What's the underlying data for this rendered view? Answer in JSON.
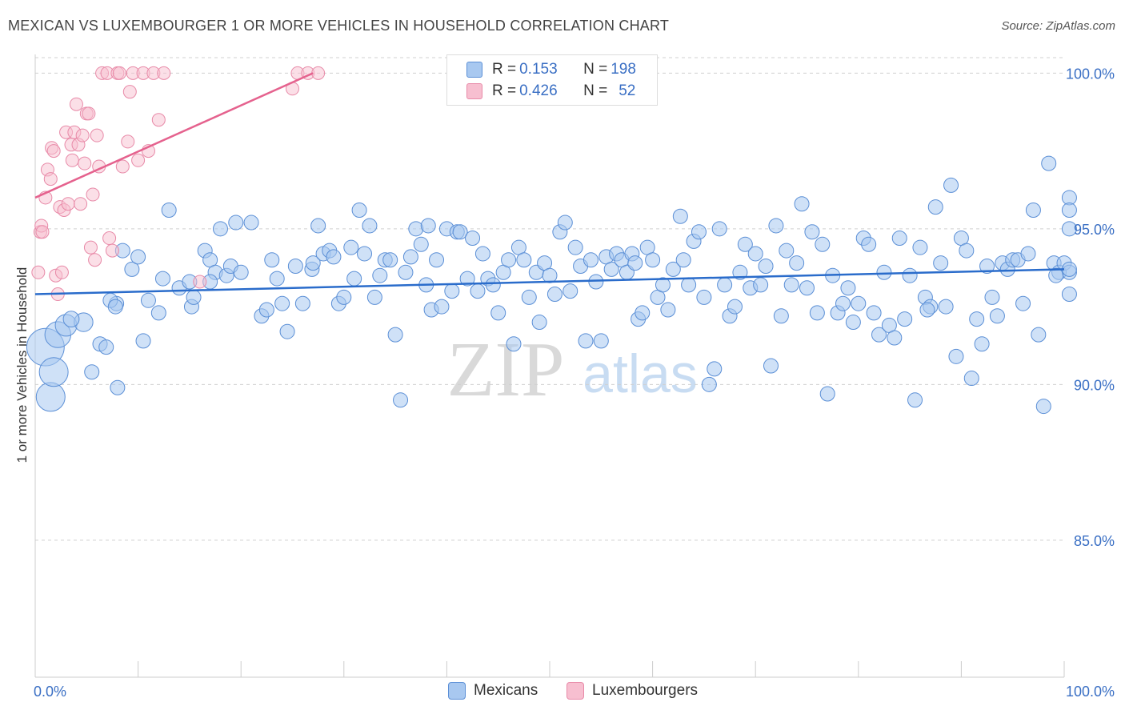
{
  "title": "MEXICAN VS LUXEMBOURGER 1 OR MORE VEHICLES IN HOUSEHOLD CORRELATION CHART",
  "source": "Source: ZipAtlas.com",
  "watermark": {
    "zip": "ZIP",
    "atlas": "atlas"
  },
  "colors": {
    "blue_fill": "#a8c8f0",
    "blue_stroke": "#5b8fd6",
    "blue_line": "#2a6ccb",
    "pink_fill": "#f7bfd0",
    "pink_stroke": "#e88aa8",
    "pink_line": "#e5628e",
    "tick_label": "#3a6fc4",
    "grid": "#d0d0d0"
  },
  "legend": {
    "rows": [
      {
        "r_label": "R = ",
        "r_value": "0.153",
        "n_label": "N = ",
        "n_value": "198"
      },
      {
        "r_label": "R = ",
        "r_value": "0.426",
        "n_label": "N = ",
        "n_value": "52"
      }
    ]
  },
  "bottom_legend": [
    "Mexicans",
    "Luxembourgers"
  ],
  "chart_data": {
    "type": "scatter",
    "title": "MEXICAN VS LUXEMBOURGER 1 OR MORE VEHICLES IN HOUSEHOLD CORRELATION CHART",
    "xlabel": "",
    "ylabel": "1 or more Vehicles in Household",
    "xlim": [
      0,
      100
    ],
    "ylim": [
      80.6,
      100.6
    ],
    "x_tick_labels": [
      "0.0%",
      "100.0%"
    ],
    "y_ticks": [
      85,
      90,
      95,
      100
    ],
    "y_tick_labels": [
      "85.0%",
      "90.0%",
      "95.0%",
      "100.0%"
    ],
    "grid": "horizontal dashed",
    "legend_placement": "top-center",
    "series": [
      {
        "name": "Mexicans",
        "color": "#a8c8f0",
        "r": 0.153,
        "n": 198,
        "trend": [
          [
            0,
            92.9
          ],
          [
            100,
            93.7
          ]
        ],
        "points": [
          [
            1,
            91.2,
            2.6
          ],
          [
            1.5,
            89.6,
            2
          ],
          [
            1.8,
            90.4,
            2
          ],
          [
            2.2,
            91.6,
            1.8
          ],
          [
            3,
            91.9,
            1.5
          ],
          [
            4.7,
            92.0,
            1.3
          ],
          [
            3.5,
            92.1,
            1.1
          ],
          [
            5.5,
            90.4,
            1
          ],
          [
            6.3,
            91.3,
            1
          ],
          [
            7.9,
            92.6,
            1
          ],
          [
            7.3,
            92.7,
            1
          ],
          [
            6.9,
            91.2,
            1
          ],
          [
            7.8,
            92.5,
            1
          ],
          [
            8,
            89.9,
            1
          ],
          [
            8.5,
            94.3,
            1
          ],
          [
            9.4,
            93.7,
            1
          ],
          [
            10,
            94.1,
            1
          ],
          [
            10.5,
            91.4,
            1
          ],
          [
            11,
            92.7,
            1
          ],
          [
            12,
            92.3,
            1
          ],
          [
            12.4,
            93.4,
            1
          ],
          [
            13,
            95.6,
            1
          ],
          [
            14,
            93.1,
            1
          ],
          [
            15.2,
            92.5,
            1
          ],
          [
            15,
            93.3,
            1
          ],
          [
            15.4,
            92.8,
            1
          ],
          [
            16.5,
            94.3,
            1
          ],
          [
            17,
            94.0,
            1
          ],
          [
            17.5,
            93.6,
            1
          ],
          [
            18,
            95.0,
            1
          ],
          [
            18.6,
            93.5,
            1
          ],
          [
            19,
            93.8,
            1
          ],
          [
            20,
            93.6,
            1
          ],
          [
            21,
            95.2,
            1
          ],
          [
            22,
            92.2,
            1
          ],
          [
            22.5,
            92.4,
            1
          ],
          [
            23,
            94.0,
            1
          ],
          [
            23.5,
            93.4,
            1
          ],
          [
            24,
            92.6,
            1
          ],
          [
            24.5,
            91.7,
            1
          ],
          [
            25.3,
            93.8,
            1
          ],
          [
            26,
            92.6,
            1
          ],
          [
            26.9,
            93.7,
            1
          ],
          [
            27,
            93.9,
            1
          ],
          [
            27.5,
            95.1,
            1
          ],
          [
            28,
            94.2,
            1
          ],
          [
            28.6,
            94.3,
            1
          ],
          [
            29,
            94.1,
            1
          ],
          [
            29.5,
            92.6,
            1
          ],
          [
            30,
            92.8,
            1
          ],
          [
            30.7,
            94.4,
            1
          ],
          [
            31,
            93.4,
            1
          ],
          [
            31.5,
            95.6,
            1
          ],
          [
            32,
            94.2,
            1
          ],
          [
            32.5,
            95.1,
            1
          ],
          [
            33,
            92.8,
            1
          ],
          [
            33.5,
            93.5,
            1
          ],
          [
            34,
            94.0,
            1
          ],
          [
            34.5,
            94.0,
            1
          ],
          [
            35,
            91.6,
            1
          ],
          [
            35.5,
            89.5,
            1
          ],
          [
            36,
            93.6,
            1
          ],
          [
            37,
            95.0,
            1
          ],
          [
            37.5,
            94.5,
            1
          ],
          [
            38,
            93.2,
            1
          ],
          [
            38.5,
            92.4,
            1
          ],
          [
            39,
            94.0,
            1
          ],
          [
            39.5,
            92.5,
            1
          ],
          [
            40,
            95.0,
            1
          ],
          [
            40.5,
            93.0,
            1
          ],
          [
            41,
            94.9,
            1
          ],
          [
            41.3,
            94.9,
            1
          ],
          [
            42,
            93.4,
            1
          ],
          [
            42.5,
            94.7,
            1
          ],
          [
            43,
            93.0,
            1
          ],
          [
            43.5,
            94.2,
            1
          ],
          [
            44,
            93.4,
            1
          ],
          [
            44.5,
            93.2,
            1
          ],
          [
            45,
            92.3,
            1
          ],
          [
            45.5,
            93.6,
            1
          ],
          [
            46,
            94.0,
            1
          ],
          [
            46.5,
            91.3,
            1
          ],
          [
            47,
            94.4,
            1
          ],
          [
            47.5,
            94.0,
            1
          ],
          [
            48,
            92.8,
            1
          ],
          [
            48.7,
            93.6,
            1
          ],
          [
            49,
            92.0,
            1
          ],
          [
            49.5,
            93.9,
            1
          ],
          [
            50,
            93.5,
            1
          ],
          [
            50.5,
            92.9,
            1
          ],
          [
            51,
            94.9,
            1
          ],
          [
            51.5,
            95.2,
            1
          ],
          [
            52,
            93.0,
            1
          ],
          [
            52.5,
            94.4,
            1
          ],
          [
            53,
            93.8,
            1
          ],
          [
            53.5,
            91.4,
            1
          ],
          [
            54,
            94.0,
            1
          ],
          [
            54.5,
            93.3,
            1
          ],
          [
            55,
            91.4,
            1
          ],
          [
            55.5,
            94.1,
            1
          ],
          [
            56,
            93.7,
            1
          ],
          [
            56.5,
            94.2,
            1
          ],
          [
            57,
            94.0,
            1
          ],
          [
            57.5,
            93.6,
            1
          ],
          [
            58,
            94.2,
            1
          ],
          [
            58.6,
            92.1,
            1
          ],
          [
            59,
            92.3,
            1
          ],
          [
            59.5,
            94.4,
            1
          ],
          [
            60,
            94.0,
            1
          ],
          [
            60.5,
            92.8,
            1
          ],
          [
            61,
            93.2,
            1
          ],
          [
            61.5,
            92.4,
            1
          ],
          [
            62,
            93.7,
            1
          ],
          [
            62.7,
            95.4,
            1
          ],
          [
            63,
            94.0,
            1
          ],
          [
            63.5,
            93.2,
            1
          ],
          [
            64,
            94.6,
            1
          ],
          [
            64.5,
            94.9,
            1
          ],
          [
            65,
            92.8,
            1
          ],
          [
            65.5,
            90.0,
            1
          ],
          [
            66,
            90.5,
            1
          ],
          [
            66.5,
            95.0,
            1
          ],
          [
            67,
            93.2,
            1
          ],
          [
            67.5,
            92.2,
            1
          ],
          [
            68,
            92.5,
            1
          ],
          [
            68.5,
            93.6,
            1
          ],
          [
            69,
            94.5,
            1
          ],
          [
            69.5,
            93.1,
            1
          ],
          [
            70,
            94.2,
            1
          ],
          [
            70.5,
            93.2,
            1
          ],
          [
            71,
            93.8,
            1
          ],
          [
            71.5,
            90.6,
            1
          ],
          [
            72,
            95.1,
            1
          ],
          [
            72.5,
            92.2,
            1
          ],
          [
            73,
            94.3,
            1
          ],
          [
            73.5,
            93.2,
            1
          ],
          [
            74,
            93.9,
            1
          ],
          [
            74.5,
            95.8,
            1
          ],
          [
            75,
            93.1,
            1
          ],
          [
            75.5,
            94.9,
            1
          ],
          [
            76,
            92.3,
            1
          ],
          [
            76.5,
            94.5,
            1
          ],
          [
            77,
            89.7,
            1
          ],
          [
            77.5,
            93.5,
            1
          ],
          [
            78,
            92.3,
            1
          ],
          [
            78.5,
            92.6,
            1
          ],
          [
            79,
            93.1,
            1
          ],
          [
            79.5,
            92.0,
            1
          ],
          [
            80,
            92.6,
            1
          ],
          [
            80.5,
            94.7,
            1
          ],
          [
            81,
            94.5,
            1
          ],
          [
            81.5,
            92.3,
            1
          ],
          [
            82,
            91.6,
            1
          ],
          [
            82.5,
            93.6,
            1
          ],
          [
            83,
            91.9,
            1
          ],
          [
            83.5,
            91.5,
            1
          ],
          [
            84,
            94.7,
            1
          ],
          [
            84.5,
            92.1,
            1
          ],
          [
            85,
            93.5,
            1
          ],
          [
            85.5,
            89.5,
            1
          ],
          [
            86,
            94.4,
            1
          ],
          [
            86.5,
            92.8,
            1
          ],
          [
            87,
            92.5,
            1
          ],
          [
            87.5,
            95.7,
            1
          ],
          [
            88,
            93.9,
            1
          ],
          [
            88.5,
            92.5,
            1
          ],
          [
            89,
            96.4,
            1
          ],
          [
            89.5,
            90.9,
            1
          ],
          [
            90,
            94.7,
            1
          ],
          [
            90.5,
            94.3,
            1
          ],
          [
            91,
            90.2,
            1
          ],
          [
            91.5,
            92.1,
            1
          ],
          [
            92,
            91.3,
            1
          ],
          [
            92.5,
            93.8,
            1
          ],
          [
            93,
            92.8,
            1
          ],
          [
            93.5,
            92.2,
            1
          ],
          [
            94,
            93.9,
            1
          ],
          [
            94.5,
            93.7,
            1
          ],
          [
            95,
            94.0,
            1
          ],
          [
            95.5,
            94.0,
            1
          ],
          [
            96,
            92.6,
            1
          ],
          [
            96.5,
            94.2,
            1
          ],
          [
            97,
            95.6,
            1
          ],
          [
            97.5,
            91.6,
            1
          ],
          [
            98,
            89.3,
            1
          ],
          [
            98.5,
            97.1,
            1
          ],
          [
            99,
            93.9,
            1
          ],
          [
            99.5,
            93.6,
            1
          ],
          [
            100,
            93.9,
            1
          ],
          [
            100.5,
            96.0,
            1
          ],
          [
            101,
            95.6,
            1
          ],
          [
            101.5,
            92.9,
            1
          ],
          [
            102,
            95.0,
            1
          ],
          [
            102.5,
            93.6,
            1
          ],
          [
            103,
            93.7,
            1
          ],
          [
            17,
            93.3,
            1
          ],
          [
            19.5,
            95.2,
            1
          ],
          [
            36.5,
            94.1,
            1
          ],
          [
            38.2,
            95.1,
            1
          ],
          [
            58.3,
            93.9,
            1
          ],
          [
            86.7,
            92.4,
            1
          ],
          [
            99.2,
            93.5,
            1
          ]
        ]
      },
      {
        "name": "Luxembourgers",
        "color": "#f7bfd0",
        "r": 0.426,
        "n": 52,
        "trend": [
          [
            0,
            96.0
          ],
          [
            27,
            100.0
          ]
        ],
        "points": [
          [
            0.3,
            93.6
          ],
          [
            0.5,
            94.9
          ],
          [
            0.6,
            95.1
          ],
          [
            0.7,
            94.9
          ],
          [
            1,
            96.0
          ],
          [
            1.2,
            96.9
          ],
          [
            1.5,
            96.6
          ],
          [
            1.6,
            97.6
          ],
          [
            1.8,
            97.5
          ],
          [
            2,
            93.5
          ],
          [
            2.2,
            92.9
          ],
          [
            2.4,
            95.7
          ],
          [
            2.6,
            93.6
          ],
          [
            2.8,
            95.6
          ],
          [
            3,
            98.1
          ],
          [
            3.2,
            95.8
          ],
          [
            3.5,
            97.7
          ],
          [
            3.6,
            97.2
          ],
          [
            3.8,
            98.1
          ],
          [
            4,
            99.0
          ],
          [
            4.2,
            97.7
          ],
          [
            4.4,
            95.8
          ],
          [
            4.6,
            98.0
          ],
          [
            4.8,
            97.1
          ],
          [
            5,
            98.7
          ],
          [
            5.2,
            98.7
          ],
          [
            5.4,
            94.4
          ],
          [
            5.6,
            96.1
          ],
          [
            5.8,
            94.0
          ],
          [
            6,
            98.0
          ],
          [
            6.2,
            97.0
          ],
          [
            6.5,
            100.0
          ],
          [
            7,
            100.0
          ],
          [
            7.2,
            94.7
          ],
          [
            7.5,
            94.3
          ],
          [
            8,
            100.0
          ],
          [
            8.2,
            100.0
          ],
          [
            8.5,
            97.0
          ],
          [
            9,
            97.8
          ],
          [
            9.2,
            99.4
          ],
          [
            9.5,
            100.0
          ],
          [
            10,
            97.2
          ],
          [
            10.5,
            100.0
          ],
          [
            11,
            97.5
          ],
          [
            11.5,
            100.0
          ],
          [
            12,
            98.5
          ],
          [
            12.5,
            100.0
          ],
          [
            16,
            93.3
          ],
          [
            25,
            99.5
          ],
          [
            25.5,
            100.0
          ],
          [
            26.5,
            100.0
          ],
          [
            27.5,
            100.0
          ]
        ]
      }
    ]
  }
}
